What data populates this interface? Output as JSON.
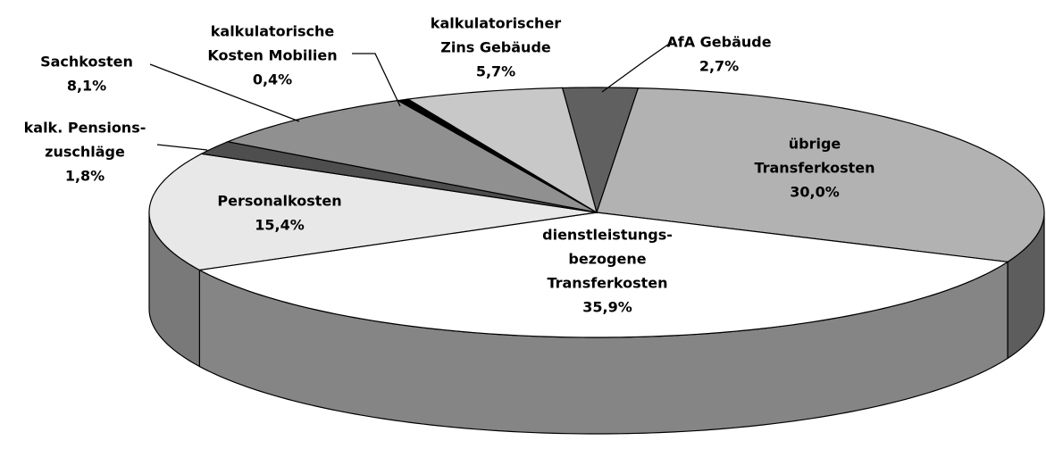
{
  "chart_data": {
    "type": "pie3d",
    "categories": [
      [
        "AfA Gebäude"
      ],
      [
        "übrige",
        "Transferkosten"
      ],
      [
        "dienstleistungs-",
        "bezogene",
        "Transferkosten"
      ],
      [
        "Personalkosten"
      ],
      [
        "kalk. Pensions-",
        "zuschläge"
      ],
      [
        "Sachkosten"
      ],
      [
        "kalkulatorische",
        "Kosten Mobilien"
      ],
      [
        "kalkulatorischer",
        "Zins Gebäude"
      ]
    ],
    "values": [
      2.7,
      30.0,
      35.9,
      15.4,
      1.8,
      8.1,
      0.4,
      5.7
    ],
    "value_labels": [
      "2,7%",
      "30,0%",
      "35,9%",
      "15,4%",
      "1,8%",
      "8,1%",
      "0,4%",
      "5,7%"
    ],
    "colors": [
      "#606060",
      "#b2b2b2",
      "#ffffff",
      "#e8e8e8",
      "#4e4e4e",
      "#909090",
      "#000000",
      "#c8c8c8"
    ]
  }
}
